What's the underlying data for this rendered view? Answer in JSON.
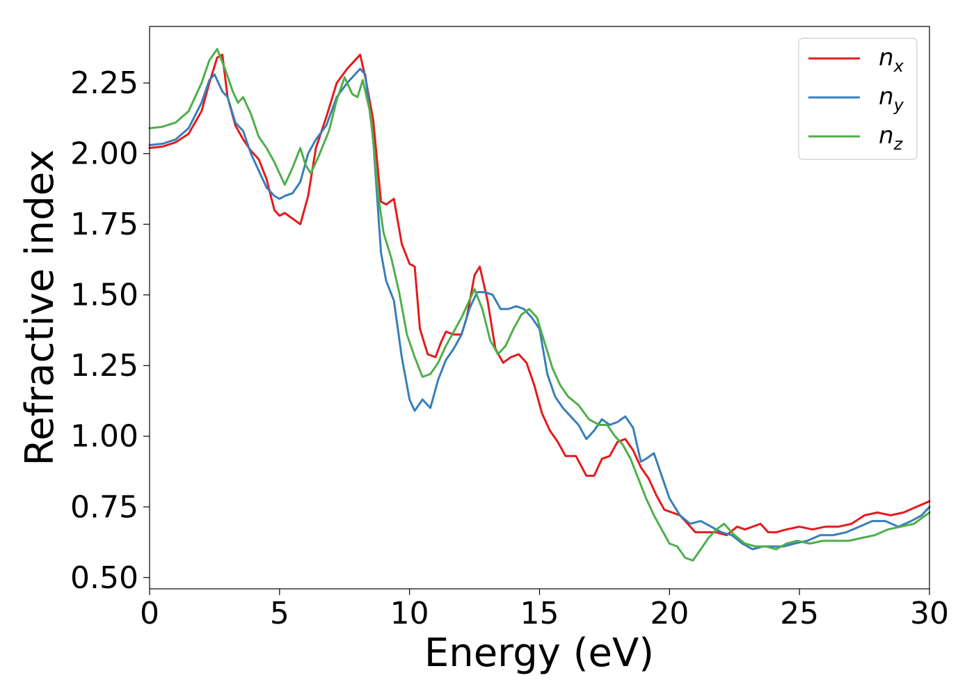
{
  "chart_data": {
    "type": "line",
    "title": "",
    "xlabel": "Energy (eV)",
    "ylabel": "Refractive index",
    "xlim": [
      0,
      30
    ],
    "ylim": [
      0.46,
      2.45
    ],
    "xticks": [
      0,
      5,
      10,
      15,
      20,
      25,
      30
    ],
    "xtick_labels": [
      "0",
      "5",
      "10",
      "15",
      "20",
      "25",
      "30"
    ],
    "yticks": [
      0.5,
      0.75,
      1.0,
      1.25,
      1.5,
      1.75,
      2.0,
      2.25
    ],
    "ytick_labels": [
      "0.50",
      "0.75",
      "1.00",
      "1.25",
      "1.50",
      "1.75",
      "2.00",
      "2.25"
    ],
    "grid": false,
    "legend_position": "top-right",
    "series": [
      {
        "name": "n_x",
        "legend_base": "n",
        "legend_sub": "x",
        "color": "#e41a1c",
        "x": [
          0,
          0.5,
          1,
          1.5,
          2,
          2.3,
          2.6,
          2.8,
          3.0,
          3.3,
          3.6,
          3.9,
          4.2,
          4.5,
          4.8,
          5.0,
          5.2,
          5.5,
          5.8,
          6.1,
          6.4,
          6.8,
          7.2,
          7.6,
          7.9,
          8.1,
          8.3,
          8.6,
          8.9,
          9.1,
          9.4,
          9.7,
          10.0,
          10.2,
          10.4,
          10.7,
          11.0,
          11.2,
          11.4,
          11.7,
          12.0,
          12.2,
          12.5,
          12.7,
          13.0,
          13.3,
          13.6,
          13.9,
          14.2,
          14.5,
          14.8,
          15.1,
          15.4,
          15.7,
          16.0,
          16.4,
          16.8,
          17.1,
          17.4,
          17.7,
          18.0,
          18.3,
          18.6,
          18.9,
          19.2,
          19.5,
          19.8,
          20.1,
          20.4,
          20.7,
          21.0,
          21.4,
          21.8,
          22.2,
          22.6,
          22.9,
          23.2,
          23.5,
          23.8,
          24.1,
          24.5,
          25.0,
          25.5,
          26.0,
          26.5,
          27.0,
          27.5,
          28.0,
          28.5,
          29.0,
          29.5,
          30.0
        ],
        "y": [
          2.02,
          2.025,
          2.04,
          2.07,
          2.15,
          2.25,
          2.34,
          2.35,
          2.2,
          2.1,
          2.05,
          2.01,
          1.98,
          1.91,
          1.8,
          1.78,
          1.79,
          1.77,
          1.75,
          1.85,
          2.02,
          2.13,
          2.25,
          2.3,
          2.33,
          2.35,
          2.27,
          2.12,
          1.83,
          1.82,
          1.84,
          1.68,
          1.61,
          1.6,
          1.38,
          1.29,
          1.28,
          1.33,
          1.37,
          1.36,
          1.36,
          1.42,
          1.57,
          1.6,
          1.48,
          1.31,
          1.26,
          1.28,
          1.29,
          1.26,
          1.18,
          1.08,
          1.02,
          0.98,
          0.93,
          0.93,
          0.86,
          0.86,
          0.92,
          0.93,
          0.98,
          0.99,
          0.95,
          0.89,
          0.85,
          0.79,
          0.74,
          0.73,
          0.72,
          0.69,
          0.66,
          0.66,
          0.66,
          0.65,
          0.68,
          0.67,
          0.68,
          0.69,
          0.66,
          0.66,
          0.67,
          0.68,
          0.67,
          0.68,
          0.68,
          0.69,
          0.72,
          0.73,
          0.72,
          0.73,
          0.75,
          0.77
        ]
      },
      {
        "name": "n_y",
        "legend_base": "n",
        "legend_sub": "y",
        "color": "#377eb8",
        "x": [
          0,
          0.5,
          1,
          1.5,
          2,
          2.3,
          2.5,
          2.8,
          3.0,
          3.3,
          3.6,
          3.9,
          4.2,
          4.5,
          4.8,
          5.0,
          5.2,
          5.5,
          5.8,
          6.1,
          6.4,
          6.8,
          7.2,
          7.6,
          7.9,
          8.1,
          8.3,
          8.6,
          8.9,
          9.1,
          9.4,
          9.7,
          10.0,
          10.2,
          10.5,
          10.8,
          11.1,
          11.4,
          11.7,
          12.0,
          12.3,
          12.6,
          12.9,
          13.2,
          13.5,
          13.8,
          14.1,
          14.4,
          14.7,
          15.0,
          15.3,
          15.6,
          15.9,
          16.2,
          16.5,
          16.8,
          17.1,
          17.4,
          17.7,
          18.0,
          18.3,
          18.6,
          18.9,
          19.1,
          19.4,
          19.7,
          20.0,
          20.4,
          20.8,
          21.2,
          21.6,
          22.0,
          22.4,
          22.8,
          23.2,
          23.6,
          24.0,
          24.4,
          24.8,
          25.3,
          25.8,
          26.3,
          26.8,
          27.3,
          27.8,
          28.3,
          28.8,
          29.3,
          29.7,
          30.0
        ],
        "y": [
          2.03,
          2.035,
          2.05,
          2.09,
          2.18,
          2.26,
          2.28,
          2.22,
          2.2,
          2.11,
          2.08,
          2.0,
          1.94,
          1.88,
          1.85,
          1.84,
          1.85,
          1.86,
          1.9,
          2.0,
          2.05,
          2.1,
          2.2,
          2.25,
          2.28,
          2.3,
          2.28,
          2.05,
          1.65,
          1.55,
          1.48,
          1.28,
          1.13,
          1.09,
          1.13,
          1.1,
          1.2,
          1.27,
          1.31,
          1.36,
          1.45,
          1.51,
          1.51,
          1.5,
          1.45,
          1.45,
          1.46,
          1.45,
          1.42,
          1.38,
          1.22,
          1.14,
          1.1,
          1.07,
          1.04,
          0.99,
          1.02,
          1.06,
          1.04,
          1.05,
          1.07,
          1.03,
          0.91,
          0.92,
          0.94,
          0.86,
          0.78,
          0.72,
          0.69,
          0.7,
          0.68,
          0.66,
          0.65,
          0.62,
          0.6,
          0.61,
          0.61,
          0.61,
          0.62,
          0.63,
          0.65,
          0.65,
          0.66,
          0.68,
          0.7,
          0.7,
          0.68,
          0.7,
          0.72,
          0.75
        ]
      },
      {
        "name": "n_z",
        "legend_base": "n",
        "legend_sub": "z",
        "color": "#4daf4a",
        "x": [
          0,
          0.5,
          1,
          1.5,
          2,
          2.3,
          2.6,
          2.9,
          3.2,
          3.4,
          3.6,
          3.9,
          4.2,
          4.5,
          4.8,
          5.0,
          5.2,
          5.5,
          5.8,
          6.0,
          6.2,
          6.5,
          6.9,
          7.2,
          7.5,
          7.8,
          8.0,
          8.2,
          8.5,
          8.8,
          9.0,
          9.3,
          9.6,
          9.9,
          10.2,
          10.5,
          10.8,
          11.1,
          11.4,
          11.7,
          12.0,
          12.3,
          12.5,
          12.8,
          13.1,
          13.4,
          13.7,
          14.0,
          14.3,
          14.6,
          14.9,
          15.2,
          15.5,
          15.8,
          16.1,
          16.5,
          16.9,
          17.3,
          17.6,
          17.9,
          18.2,
          18.5,
          18.8,
          19.1,
          19.4,
          19.7,
          20.0,
          20.3,
          20.6,
          20.9,
          21.2,
          21.5,
          21.8,
          22.1,
          22.5,
          22.9,
          23.3,
          23.7,
          24.1,
          24.5,
          24.9,
          25.4,
          25.9,
          26.4,
          26.9,
          27.4,
          27.9,
          28.4,
          28.9,
          29.4,
          30.0
        ],
        "y": [
          2.09,
          2.095,
          2.11,
          2.15,
          2.25,
          2.33,
          2.37,
          2.3,
          2.22,
          2.18,
          2.2,
          2.14,
          2.06,
          2.02,
          1.97,
          1.93,
          1.89,
          1.95,
          2.02,
          1.96,
          1.93,
          1.99,
          2.08,
          2.19,
          2.27,
          2.21,
          2.2,
          2.26,
          2.14,
          1.85,
          1.72,
          1.63,
          1.51,
          1.36,
          1.28,
          1.21,
          1.22,
          1.26,
          1.32,
          1.37,
          1.42,
          1.48,
          1.52,
          1.45,
          1.34,
          1.29,
          1.32,
          1.38,
          1.43,
          1.45,
          1.42,
          1.33,
          1.24,
          1.18,
          1.14,
          1.11,
          1.06,
          1.04,
          1.04,
          1.0,
          0.97,
          0.92,
          0.85,
          0.78,
          0.72,
          0.67,
          0.62,
          0.61,
          0.57,
          0.56,
          0.6,
          0.64,
          0.67,
          0.69,
          0.65,
          0.62,
          0.61,
          0.61,
          0.6,
          0.62,
          0.63,
          0.62,
          0.63,
          0.63,
          0.63,
          0.64,
          0.65,
          0.67,
          0.68,
          0.69,
          0.73
        ]
      }
    ]
  }
}
